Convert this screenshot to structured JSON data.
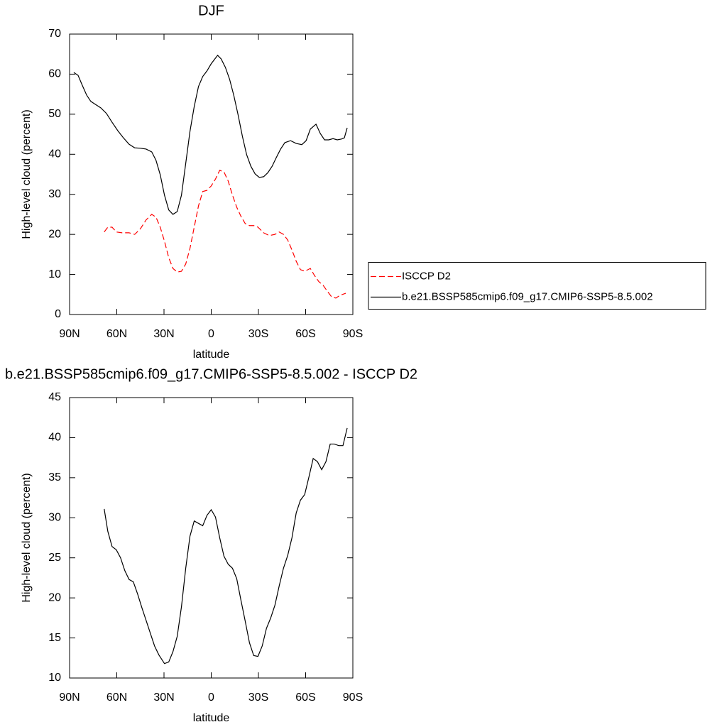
{
  "chart_data": [
    {
      "type": "line",
      "title": "DJF",
      "xlabel": "latitude",
      "ylabel": "High-level cloud (percent)",
      "xlim": [
        90,
        -90
      ],
      "xticks": [
        {
          "value": 90,
          "label": "90N"
        },
        {
          "value": 60,
          "label": "60N"
        },
        {
          "value": 30,
          "label": "30N"
        },
        0,
        {
          "value": -30,
          "label": "30S"
        },
        {
          "value": -60,
          "label": "60S"
        },
        {
          "value": -90,
          "label": "90S"
        }
      ],
      "ylim": [
        0,
        70
      ],
      "yticks": [
        0,
        10,
        20,
        30,
        40,
        50,
        60,
        70
      ],
      "legend": "right",
      "series": [
        {
          "name": "ISCCP D2",
          "color": "#ff0000",
          "line_style": "dashed",
          "x": [
            68.0,
            65.7,
            63.0,
            60.3,
            56.7,
            52.2,
            48.6,
            45.0,
            41.4,
            37.8,
            35.1,
            32.4,
            29.7,
            27.0,
            24.3,
            21.6,
            18.9,
            16.2,
            13.5,
            10.8,
            8.1,
            5.4,
            2.7,
            0.0,
            -2.7,
            -5.4,
            -8.1,
            -10.8,
            -13.5,
            -16.2,
            -18.9,
            -21.6,
            -24.3,
            -27.0,
            -29.7,
            -33.3,
            -36.9,
            -40.5,
            -43.2,
            -45.9,
            -48.6,
            -51.3,
            -54.0,
            -56.7,
            -59.4,
            -63.0,
            -65.7,
            -68.4,
            -71.1,
            -73.8,
            -76.5,
            -79.2,
            -81.9,
            -85.5
          ],
          "values": [
            20.6,
            21.8,
            21.8,
            20.6,
            20.4,
            20.4,
            20.0,
            21.4,
            23.6,
            25.0,
            24.3,
            21.8,
            18.3,
            14.2,
            11.5,
            10.6,
            10.8,
            12.6,
            16.5,
            21.8,
            27.1,
            30.7,
            31.0,
            32.1,
            33.8,
            36.0,
            35.6,
            33.3,
            29.8,
            26.8,
            24.5,
            22.7,
            22.2,
            22.2,
            21.8,
            20.4,
            19.7,
            20.0,
            20.6,
            20.0,
            18.6,
            16.1,
            13.3,
            11.2,
            10.8,
            11.5,
            9.7,
            8.2,
            7.3,
            5.8,
            4.4,
            4.1,
            4.8,
            5.3
          ]
        },
        {
          "name": "b.e21.BSSP585cmip6.f09_g17.CMIP6-SSP5-8.5.002",
          "color": "#000000",
          "line_style": "solid",
          "x": [
            87.3,
            84.6,
            81.9,
            79.2,
            76.5,
            73.8,
            70.2,
            66.6,
            63.0,
            59.4,
            55.8,
            52.2,
            48.6,
            45.0,
            41.4,
            37.8,
            35.1,
            32.4,
            29.7,
            27.0,
            24.3,
            21.6,
            18.9,
            16.2,
            13.5,
            10.8,
            8.1,
            5.4,
            2.7,
            0.0,
            -2.7,
            -4.1,
            -6.3,
            -9.0,
            -11.7,
            -14.4,
            -17.1,
            -19.8,
            -22.5,
            -25.2,
            -27.9,
            -30.6,
            -33.3,
            -36.0,
            -38.7,
            -41.4,
            -44.1,
            -46.8,
            -50.4,
            -54.0,
            -57.6,
            -60.3,
            -63.0,
            -66.6,
            -69.3,
            -72.0,
            -74.7,
            -77.4,
            -80.1,
            -82.8,
            -84.6,
            -86.4
          ],
          "values": [
            60.4,
            59.7,
            57.2,
            54.8,
            53.2,
            52.5,
            51.6,
            50.2,
            48.0,
            45.9,
            44.1,
            42.5,
            41.6,
            41.5,
            41.3,
            40.6,
            38.5,
            34.9,
            29.8,
            26.1,
            25.0,
            25.7,
            29.8,
            37.7,
            45.7,
            51.9,
            56.9,
            59.4,
            60.8,
            62.6,
            64.0,
            64.7,
            63.8,
            61.7,
            58.7,
            54.6,
            49.8,
            44.5,
            39.9,
            37.0,
            35.1,
            34.2,
            34.4,
            35.4,
            37.0,
            39.2,
            41.3,
            42.9,
            43.4,
            42.7,
            42.4,
            43.4,
            46.3,
            47.5,
            45.2,
            43.6,
            43.6,
            43.9,
            43.6,
            43.8,
            44.1,
            46.6
          ]
        }
      ]
    },
    {
      "type": "line",
      "title": "b.e21.BSSP585cmip6.f09_g17.CMIP6-SSP5-8.5.002 - ISCCP D2",
      "xlabel": "latitude",
      "ylabel": "High-level cloud (percent)",
      "xlim": [
        90,
        -90
      ],
      "xticks": [
        {
          "value": 90,
          "label": "90N"
        },
        {
          "value": 60,
          "label": "60N"
        },
        {
          "value": 30,
          "label": "30N"
        },
        0,
        {
          "value": -30,
          "label": "30S"
        },
        {
          "value": -60,
          "label": "60S"
        },
        {
          "value": -90,
          "label": "90S"
        }
      ],
      "ylim": [
        10,
        45
      ],
      "yticks": [
        10,
        15,
        20,
        25,
        30,
        35,
        40,
        45
      ],
      "series": [
        {
          "color": "#000000",
          "line_style": "solid",
          "x": [
            68.0,
            65.7,
            63.0,
            60.3,
            57.6,
            54.9,
            52.2,
            49.5,
            46.8,
            44.1,
            41.4,
            38.7,
            36.0,
            33.3,
            29.7,
            27.0,
            24.3,
            21.6,
            18.9,
            16.2,
            13.5,
            10.8,
            8.1,
            5.4,
            2.7,
            0.0,
            -2.7,
            -5.4,
            -8.1,
            -10.8,
            -13.5,
            -16.2,
            -18.9,
            -21.6,
            -24.3,
            -27.0,
            -29.7,
            -32.4,
            -35.1,
            -37.8,
            -40.5,
            -43.2,
            -45.9,
            -48.6,
            -51.3,
            -54.0,
            -56.7,
            -59.4,
            -62.1,
            -64.8,
            -67.5,
            -70.2,
            -72.9,
            -75.6,
            -78.3,
            -81.0,
            -83.7,
            -86.4
          ],
          "values": [
            31.1,
            28.3,
            26.4,
            26.0,
            25.0,
            23.4,
            22.3,
            22.0,
            20.5,
            18.8,
            17.2,
            15.6,
            14.0,
            12.9,
            11.8,
            12.0,
            13.3,
            15.2,
            18.9,
            23.7,
            27.7,
            29.6,
            29.3,
            29.0,
            30.3,
            31.0,
            30.1,
            27.5,
            25.2,
            24.2,
            23.7,
            22.4,
            19.7,
            17.1,
            14.4,
            12.8,
            12.7,
            14.0,
            16.2,
            17.5,
            19.1,
            21.5,
            23.7,
            25.3,
            27.5,
            30.6,
            32.2,
            32.9,
            35.1,
            37.4,
            37.0,
            36.0,
            37.0,
            39.2,
            39.2,
            39.0,
            39.0,
            41.2
          ]
        }
      ]
    }
  ]
}
